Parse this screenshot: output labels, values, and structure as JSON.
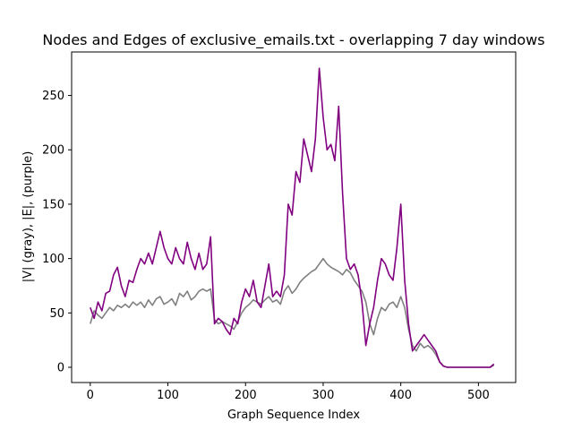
{
  "chart_data": {
    "type": "line",
    "title": "Nodes and Edges of exclusive_emails.txt - overlapping 7 day windows",
    "xlabel": "Graph Sequence Index",
    "ylabel": "|V| (gray), |E|, (purple)",
    "xlim": [
      -24,
      548
    ],
    "ylim": [
      -14,
      290
    ],
    "xticks": [
      0,
      100,
      200,
      300,
      400,
      500
    ],
    "yticks": [
      0,
      50,
      100,
      150,
      200,
      250
    ],
    "grid": false,
    "legend": "none",
    "series": [
      {
        "color": "#808080",
        "x": [
          0,
          5,
          10,
          15,
          20,
          25,
          30,
          35,
          40,
          45,
          50,
          55,
          60,
          65,
          70,
          75,
          80,
          85,
          90,
          95,
          100,
          105,
          110,
          115,
          120,
          125,
          130,
          135,
          140,
          145,
          150,
          155,
          160,
          165,
          170,
          175,
          180,
          185,
          190,
          195,
          200,
          205,
          210,
          215,
          220,
          225,
          230,
          235,
          240,
          245,
          250,
          255,
          260,
          265,
          270,
          275,
          280,
          285,
          290,
          295,
          300,
          305,
          310,
          315,
          320,
          325,
          330,
          335,
          340,
          345,
          350,
          355,
          360,
          365,
          370,
          375,
          380,
          385,
          390,
          395,
          400,
          405,
          410,
          415,
          420,
          425,
          430,
          435,
          440,
          445,
          450,
          455,
          460,
          465,
          470,
          475,
          480,
          485,
          490,
          495,
          500,
          505,
          510,
          515,
          520
        ],
        "y": [
          40,
          52,
          48,
          45,
          50,
          55,
          52,
          57,
          55,
          58,
          55,
          60,
          57,
          60,
          55,
          62,
          57,
          63,
          65,
          58,
          60,
          63,
          57,
          68,
          65,
          70,
          62,
          65,
          70,
          72,
          70,
          72,
          44,
          40,
          42,
          40,
          38,
          35,
          42,
          50,
          55,
          58,
          62,
          60,
          58,
          62,
          65,
          60,
          62,
          58,
          70,
          75,
          68,
          72,
          78,
          82,
          85,
          88,
          90,
          95,
          100,
          95,
          92,
          90,
          88,
          85,
          90,
          87,
          80,
          75,
          70,
          60,
          40,
          30,
          45,
          55,
          52,
          58,
          60,
          55,
          65,
          55,
          35,
          20,
          15,
          22,
          18,
          20,
          17,
          12,
          5,
          1,
          0,
          0,
          0,
          0,
          0,
          0,
          0,
          0,
          0,
          0,
          0,
          0,
          2
        ]
      },
      {
        "color": "#800080",
        "x": [
          0,
          5,
          10,
          15,
          20,
          25,
          30,
          35,
          40,
          45,
          50,
          55,
          60,
          65,
          70,
          75,
          80,
          85,
          90,
          95,
          100,
          105,
          110,
          115,
          120,
          125,
          130,
          135,
          140,
          145,
          150,
          155,
          160,
          165,
          170,
          175,
          180,
          185,
          190,
          195,
          200,
          205,
          210,
          215,
          220,
          225,
          230,
          235,
          240,
          245,
          250,
          255,
          260,
          265,
          270,
          275,
          280,
          285,
          290,
          295,
          300,
          305,
          310,
          315,
          320,
          325,
          330,
          335,
          340,
          345,
          350,
          355,
          360,
          365,
          370,
          375,
          380,
          385,
          390,
          395,
          400,
          405,
          410,
          415,
          420,
          425,
          430,
          435,
          440,
          445,
          450,
          455,
          460,
          465,
          470,
          475,
          480,
          485,
          490,
          495,
          500,
          505,
          510,
          515,
          520
        ],
        "y": [
          55,
          45,
          60,
          52,
          68,
          70,
          85,
          92,
          75,
          65,
          80,
          78,
          90,
          100,
          95,
          105,
          95,
          110,
          125,
          110,
          100,
          95,
          110,
          100,
          95,
          115,
          100,
          90,
          105,
          90,
          95,
          120,
          40,
          45,
          42,
          35,
          30,
          45,
          40,
          60,
          72,
          65,
          80,
          60,
          55,
          75,
          95,
          65,
          70,
          65,
          85,
          150,
          140,
          180,
          170,
          210,
          195,
          180,
          210,
          275,
          230,
          200,
          205,
          190,
          240,
          160,
          100,
          90,
          95,
          85,
          60,
          20,
          40,
          55,
          80,
          100,
          95,
          85,
          80,
          110,
          150,
          80,
          40,
          15,
          20,
          25,
          30,
          25,
          20,
          15,
          5,
          1,
          0,
          0,
          0,
          0,
          0,
          0,
          0,
          0,
          0,
          0,
          0,
          0,
          3
        ]
      }
    ]
  }
}
